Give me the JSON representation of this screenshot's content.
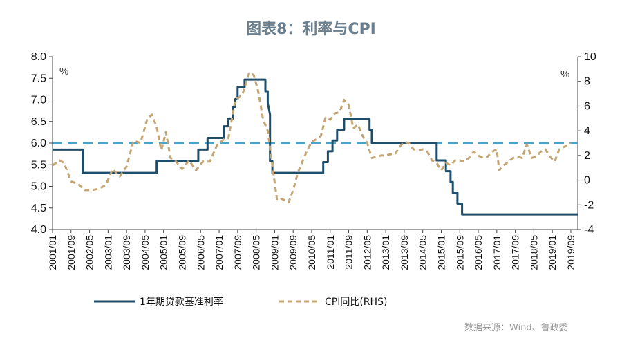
{
  "chart_data": {
    "type": "line",
    "title": "图表8：利率与CPI",
    "left_axis": {
      "unit": "%",
      "ylim": [
        4.0,
        8.0
      ],
      "ticks": [
        "4.0",
        "4.5",
        "5.0",
        "5.5",
        "6.0",
        "6.5",
        "7.0",
        "7.5",
        "8.0"
      ]
    },
    "right_axis": {
      "unit": "%",
      "ylim": [
        -4,
        10
      ],
      "ticks": [
        "-4",
        "-2",
        "0",
        "2",
        "4",
        "6",
        "8",
        "10"
      ]
    },
    "x_ticks": [
      "2001/01",
      "2001/09",
      "2002/05",
      "2003/01",
      "2003/09",
      "2004/05",
      "2005/01",
      "2005/09",
      "2006/05",
      "2007/01",
      "2007/09",
      "2008/05",
      "2009/01",
      "2009/09",
      "2010/05",
      "2011/01",
      "2011/09",
      "2012/05",
      "2013/01",
      "2013/09",
      "2014/05",
      "2015/01",
      "2015/09",
      "2016/05",
      "2017/01",
      "2017/09",
      "2018/05",
      "2019/01",
      "2019/09"
    ],
    "reference_line": {
      "axis": "left",
      "value": 6.0,
      "color": "#4aa3c9"
    },
    "series": [
      {
        "name": "1年期贷款基准利率",
        "axis": "left",
        "style": "solid",
        "color": "#1f4e6b",
        "points": [
          [
            "2001/01",
            5.85
          ],
          [
            "2002/02",
            5.85
          ],
          [
            "2002/02",
            5.31
          ],
          [
            "2004/10",
            5.31
          ],
          [
            "2004/10",
            5.58
          ],
          [
            "2006/04",
            5.58
          ],
          [
            "2006/04",
            5.85
          ],
          [
            "2006/08",
            5.85
          ],
          [
            "2006/08",
            6.12
          ],
          [
            "2007/03",
            6.12
          ],
          [
            "2007/03",
            6.39
          ],
          [
            "2007/05",
            6.39
          ],
          [
            "2007/05",
            6.57
          ],
          [
            "2007/07",
            6.57
          ],
          [
            "2007/07",
            6.84
          ],
          [
            "2007/08",
            6.84
          ],
          [
            "2007/08",
            7.02
          ],
          [
            "2007/09",
            7.02
          ],
          [
            "2007/09",
            7.29
          ],
          [
            "2007/12",
            7.29
          ],
          [
            "2007/12",
            7.47
          ],
          [
            "2008/09",
            7.47
          ],
          [
            "2008/09",
            7.2
          ],
          [
            "2008/10",
            7.2
          ],
          [
            "2008/10",
            6.93
          ],
          [
            "2008/11",
            6.66
          ],
          [
            "2008/11",
            5.58
          ],
          [
            "2008/12",
            5.58
          ],
          [
            "2008/12",
            5.31
          ],
          [
            "2010/10",
            5.31
          ],
          [
            "2010/10",
            5.56
          ],
          [
            "2010/12",
            5.56
          ],
          [
            "2010/12",
            5.81
          ],
          [
            "2011/02",
            5.81
          ],
          [
            "2011/02",
            6.06
          ],
          [
            "2011/04",
            6.06
          ],
          [
            "2011/04",
            6.31
          ],
          [
            "2011/07",
            6.31
          ],
          [
            "2011/07",
            6.56
          ],
          [
            "2012/06",
            6.56
          ],
          [
            "2012/06",
            6.31
          ],
          [
            "2012/07",
            6.31
          ],
          [
            "2012/07",
            6.0
          ],
          [
            "2014/11",
            6.0
          ],
          [
            "2014/11",
            5.6
          ],
          [
            "2015/03",
            5.6
          ],
          [
            "2015/03",
            5.35
          ],
          [
            "2015/05",
            5.35
          ],
          [
            "2015/05",
            5.1
          ],
          [
            "2015/06",
            5.1
          ],
          [
            "2015/06",
            4.85
          ],
          [
            "2015/08",
            4.85
          ],
          [
            "2015/08",
            4.6
          ],
          [
            "2015/10",
            4.6
          ],
          [
            "2015/10",
            4.35
          ],
          [
            "2019/12",
            4.35
          ]
        ]
      },
      {
        "name": "CPI同比(RHS)",
        "axis": "right",
        "style": "dashed",
        "color": "#c4a574",
        "points": [
          [
            "2001/01",
            1.2
          ],
          [
            "2001/04",
            1.6
          ],
          [
            "2001/06",
            1.4
          ],
          [
            "2001/09",
            -0.1
          ],
          [
            "2001/12",
            -0.3
          ],
          [
            "2002/03",
            -0.8
          ],
          [
            "2002/06",
            -0.8
          ],
          [
            "2002/09",
            -0.7
          ],
          [
            "2002/12",
            -0.4
          ],
          [
            "2003/03",
            0.9
          ],
          [
            "2003/06",
            0.3
          ],
          [
            "2003/09",
            1.1
          ],
          [
            "2003/12",
            3.2
          ],
          [
            "2004/03",
            3.0
          ],
          [
            "2004/06",
            5.0
          ],
          [
            "2004/08",
            5.3
          ],
          [
            "2004/10",
            4.3
          ],
          [
            "2004/12",
            2.4
          ],
          [
            "2005/02",
            3.9
          ],
          [
            "2005/04",
            1.8
          ],
          [
            "2005/06",
            1.6
          ],
          [
            "2005/09",
            0.9
          ],
          [
            "2005/12",
            1.6
          ],
          [
            "2006/03",
            0.8
          ],
          [
            "2006/06",
            1.5
          ],
          [
            "2006/09",
            1.5
          ],
          [
            "2006/12",
            2.8
          ],
          [
            "2007/03",
            3.3
          ],
          [
            "2007/05",
            3.4
          ],
          [
            "2007/08",
            6.5
          ],
          [
            "2007/11",
            6.9
          ],
          [
            "2008/02",
            8.7
          ],
          [
            "2008/04",
            8.5
          ],
          [
            "2008/06",
            7.1
          ],
          [
            "2008/08",
            4.9
          ],
          [
            "2008/10",
            4.0
          ],
          [
            "2008/12",
            1.2
          ],
          [
            "2009/02",
            -1.6
          ],
          [
            "2009/04",
            -1.5
          ],
          [
            "2009/07",
            -1.8
          ],
          [
            "2009/09",
            -0.8
          ],
          [
            "2009/11",
            0.6
          ],
          [
            "2010/01",
            1.5
          ],
          [
            "2010/03",
            2.4
          ],
          [
            "2010/05",
            3.1
          ],
          [
            "2010/07",
            3.3
          ],
          [
            "2010/09",
            3.6
          ],
          [
            "2010/11",
            5.1
          ],
          [
            "2011/01",
            4.9
          ],
          [
            "2011/03",
            5.4
          ],
          [
            "2011/05",
            5.5
          ],
          [
            "2011/07",
            6.5
          ],
          [
            "2011/09",
            6.1
          ],
          [
            "2011/11",
            4.2
          ],
          [
            "2012/01",
            4.5
          ],
          [
            "2012/03",
            3.6
          ],
          [
            "2012/05",
            3.0
          ],
          [
            "2012/07",
            1.8
          ],
          [
            "2012/09",
            1.9
          ],
          [
            "2012/11",
            2.0
          ],
          [
            "2013/01",
            2.0
          ],
          [
            "2013/03",
            2.1
          ],
          [
            "2013/05",
            2.1
          ],
          [
            "2013/07",
            2.7
          ],
          [
            "2013/09",
            3.1
          ],
          [
            "2013/11",
            3.0
          ],
          [
            "2014/01",
            2.5
          ],
          [
            "2014/03",
            2.4
          ],
          [
            "2014/05",
            2.5
          ],
          [
            "2014/07",
            2.3
          ],
          [
            "2014/09",
            1.6
          ],
          [
            "2014/11",
            1.4
          ],
          [
            "2015/01",
            0.8
          ],
          [
            "2015/03",
            1.4
          ],
          [
            "2015/05",
            1.2
          ],
          [
            "2015/07",
            1.6
          ],
          [
            "2015/09",
            1.6
          ],
          [
            "2015/11",
            1.5
          ],
          [
            "2016/01",
            1.8
          ],
          [
            "2016/03",
            2.3
          ],
          [
            "2016/05",
            2.0
          ],
          [
            "2016/07",
            1.8
          ],
          [
            "2016/09",
            1.9
          ],
          [
            "2016/11",
            2.3
          ],
          [
            "2017/01",
            2.5
          ],
          [
            "2017/02",
            0.8
          ],
          [
            "2017/04",
            1.2
          ],
          [
            "2017/06",
            1.5
          ],
          [
            "2017/08",
            1.8
          ],
          [
            "2017/10",
            1.9
          ],
          [
            "2017/12",
            1.8
          ],
          [
            "2018/02",
            2.9
          ],
          [
            "2018/04",
            1.8
          ],
          [
            "2018/06",
            1.9
          ],
          [
            "2018/08",
            2.3
          ],
          [
            "2018/10",
            2.5
          ],
          [
            "2018/12",
            1.9
          ],
          [
            "2019/02",
            1.5
          ],
          [
            "2019/04",
            2.5
          ],
          [
            "2019/06",
            2.7
          ],
          [
            "2019/08",
            2.8
          ],
          [
            "2019/09",
            3.0
          ]
        ]
      }
    ],
    "legend": {
      "position": "bottom"
    },
    "source_note": "数据来源：Wind、鲁政委"
  }
}
